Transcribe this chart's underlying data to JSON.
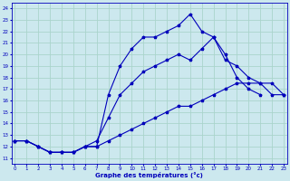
{
  "xlabel": "Graphe des températures (°c)",
  "bg_color": "#cce8ee",
  "grid_color": "#aad4cc",
  "line_color": "#0000bb",
  "x_ticks": [
    0,
    1,
    2,
    3,
    4,
    5,
    6,
    7,
    8,
    9,
    10,
    11,
    12,
    13,
    14,
    15,
    16,
    17,
    18,
    19,
    20,
    21,
    22,
    23
  ],
  "y_ticks": [
    11,
    12,
    13,
    14,
    15,
    16,
    17,
    18,
    19,
    20,
    21,
    22,
    23,
    24
  ],
  "xlim": [
    -0.3,
    23.3
  ],
  "ylim": [
    10.5,
    24.5
  ],
  "line1_x": [
    0,
    1,
    2,
    3,
    4,
    5,
    6,
    7,
    8,
    9,
    10,
    11,
    12,
    13,
    14,
    15,
    16,
    17,
    18,
    19,
    20,
    21
  ],
  "line1_y": [
    12.5,
    12.5,
    12.0,
    11.5,
    11.5,
    11.5,
    12.0,
    12.0,
    16.5,
    19.0,
    20.5,
    21.5,
    21.5,
    22.0,
    22.5,
    23.5,
    22.0,
    21.5,
    20.0,
    18.0,
    17.0,
    16.5
  ],
  "line2_x": [
    0,
    1,
    2,
    3,
    4,
    5,
    6,
    7,
    8,
    9,
    10,
    11,
    12,
    13,
    14,
    15,
    16,
    17,
    18,
    19,
    20,
    21,
    22,
    23
  ],
  "line2_y": [
    12.5,
    12.5,
    12.0,
    11.5,
    11.5,
    11.5,
    12.0,
    12.5,
    14.5,
    16.5,
    17.5,
    18.5,
    19.0,
    19.5,
    20.0,
    19.5,
    20.5,
    21.5,
    19.5,
    19.0,
    18.0,
    17.5,
    16.5,
    16.5
  ],
  "line3_x": [
    0,
    1,
    2,
    3,
    4,
    5,
    6,
    7,
    8,
    9,
    10,
    11,
    12,
    13,
    14,
    15,
    16,
    17,
    18,
    19,
    20,
    21,
    22,
    23
  ],
  "line3_y": [
    12.5,
    12.5,
    12.0,
    11.5,
    11.5,
    11.5,
    12.0,
    12.0,
    12.5,
    13.0,
    13.5,
    14.0,
    14.5,
    15.0,
    15.5,
    15.5,
    16.0,
    16.5,
    17.0,
    17.5,
    17.5,
    17.5,
    17.5,
    16.5
  ]
}
